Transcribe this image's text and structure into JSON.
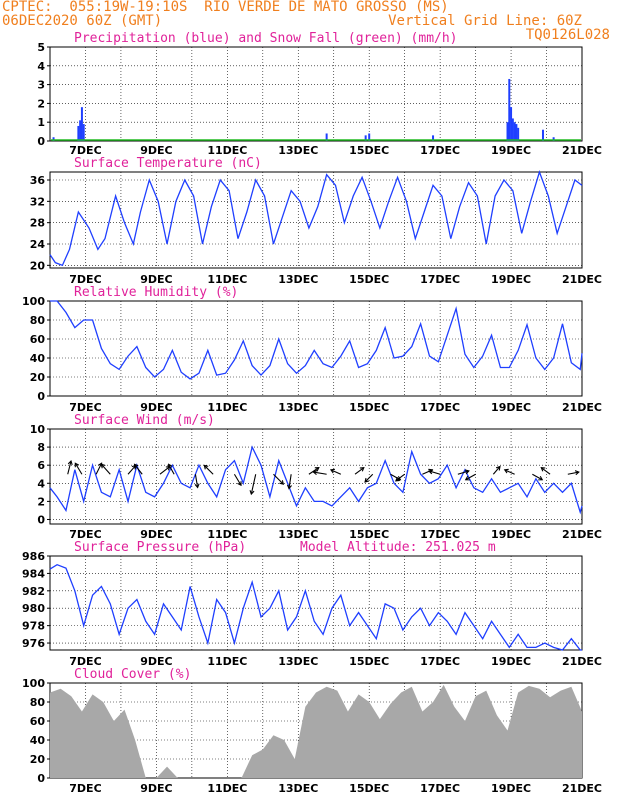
{
  "header": {
    "line1_left": "CPTEC:  055:19W-19:10S  RIO VERDE DE MATO GROSSO (MS)",
    "line2_left": "06DEC2020 60Z (GMT)",
    "line2_right": "Vertical Grid Line: 60Z",
    "line3_right": "TQ0126L028"
  },
  "colors": {
    "series": "#1f3fff",
    "snow": "#22bb22",
    "cloud": "#a8a8a8",
    "title": "#e0229a",
    "header": "#f07f1e"
  },
  "x_labels": [
    "7DEC",
    "9DEC",
    "11DEC",
    "13DEC",
    "15DEC",
    "17DEC",
    "19DEC",
    "21DEC"
  ],
  "chart_data": [
    {
      "type": "bar",
      "title": "Precipitation (blue) and Snow Fall (green) (mm/h)",
      "x_unit": "day_of_december",
      "ylim": [
        0,
        5
      ],
      "yticks": [
        0,
        1,
        2,
        3,
        4,
        5
      ],
      "series": [
        {
          "name": "Precipitation",
          "x": [
            6.1,
            6.8,
            6.85,
            6.9,
            6.95,
            13.8,
            14.9,
            15.0,
            16.8,
            18.9,
            18.95,
            19.0,
            19.05,
            19.1,
            19.15,
            19.2,
            19.9,
            20.2
          ],
          "values": [
            0.2,
            0.8,
            1.1,
            1.8,
            0.9,
            0.4,
            0.3,
            0.4,
            0.3,
            1.0,
            3.3,
            1.8,
            1.2,
            1.0,
            0.9,
            0.7,
            0.6,
            0.2
          ]
        },
        {
          "name": "Snow Fall",
          "x": [],
          "values": []
        }
      ]
    },
    {
      "type": "line",
      "title": "Surface Temperature (nC)",
      "x_unit": "day_of_december",
      "ylim": [
        19.5,
        37.5
      ],
      "yticks": [
        20,
        24,
        28,
        32,
        36
      ],
      "x": [
        6.0,
        6.15,
        6.35,
        6.55,
        6.8,
        7.1,
        7.35,
        7.55,
        7.85,
        8.1,
        8.35,
        8.55,
        8.8,
        9.05,
        9.3,
        9.55,
        9.8,
        10.05,
        10.3,
        10.55,
        10.8,
        11.05,
        11.3,
        11.55,
        11.8,
        12.05,
        12.3,
        12.55,
        12.8,
        13.05,
        13.3,
        13.55,
        13.8,
        14.05,
        14.3,
        14.55,
        14.8,
        15.05,
        15.3,
        15.55,
        15.8,
        16.05,
        16.3,
        16.55,
        16.8,
        17.05,
        17.3,
        17.55,
        17.8,
        18.05,
        18.3,
        18.55,
        18.8,
        19.05,
        19.3,
        19.55,
        19.8,
        20.05,
        20.3,
        20.55,
        20.8,
        21.0
      ],
      "values": [
        22.0,
        20.5,
        20.0,
        23.0,
        30.0,
        27.0,
        23.0,
        25.0,
        33.0,
        28.0,
        24.0,
        30.0,
        36.0,
        32.0,
        24.0,
        32.0,
        36.0,
        33.0,
        24.0,
        31.0,
        36.0,
        34.0,
        25.0,
        30.0,
        36.0,
        33.0,
        24.0,
        29.0,
        34.0,
        32.0,
        27.0,
        31.0,
        37.0,
        35.0,
        28.0,
        33.0,
        36.5,
        32.0,
        27.0,
        32.0,
        36.5,
        32.0,
        25.0,
        30.0,
        35.0,
        33.0,
        25.0,
        31.0,
        35.5,
        33.0,
        24.0,
        33.0,
        36.0,
        34.0,
        26.0,
        32.0,
        37.5,
        33.0,
        26.0,
        31.0,
        36.0,
        35.0
      ]
    },
    {
      "type": "line",
      "title": "Relative Humidity (%)",
      "x_unit": "day_of_december",
      "ylim": [
        0,
        100
      ],
      "yticks": [
        0,
        20,
        40,
        60,
        80,
        100
      ],
      "x": [
        6.0,
        6.2,
        6.45,
        6.7,
        6.95,
        7.2,
        7.45,
        7.7,
        7.95,
        8.2,
        8.45,
        8.7,
        8.95,
        9.2,
        9.45,
        9.7,
        9.95,
        10.2,
        10.45,
        10.7,
        10.95,
        11.2,
        11.45,
        11.7,
        11.95,
        12.2,
        12.45,
        12.7,
        12.95,
        13.2,
        13.45,
        13.7,
        13.95,
        14.2,
        14.45,
        14.7,
        14.95,
        15.2,
        15.45,
        15.7,
        15.95,
        16.2,
        16.45,
        16.7,
        16.95,
        17.2,
        17.45,
        17.7,
        17.95,
        18.2,
        18.45,
        18.7,
        18.95,
        19.2,
        19.45,
        19.7,
        19.95,
        20.2,
        20.45,
        20.7,
        20.95,
        21.0
      ],
      "values": [
        100,
        100,
        88,
        72,
        80,
        80,
        50,
        34,
        28,
        42,
        52,
        30,
        20,
        28,
        48,
        25,
        18,
        24,
        48,
        22,
        24,
        38,
        58,
        32,
        22,
        32,
        60,
        34,
        24,
        32,
        48,
        34,
        30,
        42,
        58,
        30,
        34,
        48,
        72,
        40,
        42,
        52,
        76,
        42,
        36,
        64,
        92,
        44,
        30,
        42,
        64,
        30,
        30,
        48,
        75,
        40,
        28,
        40,
        76,
        35,
        28,
        45
      ]
    },
    {
      "type": "line",
      "title": "Surface Wind (m/s)",
      "x_unit": "day_of_december",
      "ylim": [
        -0.5,
        10
      ],
      "yticks": [
        0,
        2,
        4,
        6,
        8,
        10
      ],
      "x": [
        6.0,
        6.2,
        6.45,
        6.7,
        6.95,
        7.2,
        7.45,
        7.7,
        7.95,
        8.2,
        8.45,
        8.7,
        8.95,
        9.2,
        9.45,
        9.7,
        9.95,
        10.2,
        10.45,
        10.7,
        10.95,
        11.2,
        11.45,
        11.7,
        11.95,
        12.2,
        12.45,
        12.7,
        12.95,
        13.2,
        13.45,
        13.7,
        13.95,
        14.2,
        14.45,
        14.7,
        14.95,
        15.2,
        15.45,
        15.7,
        15.95,
        16.2,
        16.45,
        16.7,
        16.95,
        17.2,
        17.45,
        17.7,
        17.95,
        18.2,
        18.45,
        18.7,
        18.95,
        19.2,
        19.45,
        19.7,
        19.95,
        20.2,
        20.45,
        20.7,
        20.95,
        21.0
      ],
      "values": [
        3.5,
        2.5,
        1.0,
        5.5,
        2.0,
        6.0,
        3.0,
        2.5,
        5.5,
        2.0,
        6.0,
        3.0,
        2.5,
        4.0,
        6.0,
        4.0,
        3.5,
        6.0,
        4.0,
        2.5,
        5.5,
        6.5,
        4.0,
        8.0,
        6.0,
        2.5,
        6.5,
        4.0,
        1.5,
        3.5,
        2.0,
        2.0,
        1.5,
        2.5,
        3.5,
        2.0,
        3.5,
        4.0,
        6.5,
        4.0,
        3.0,
        7.5,
        5.0,
        4.0,
        4.5,
        6.0,
        3.5,
        5.5,
        3.5,
        3.0,
        4.5,
        3.0,
        3.5,
        4.0,
        2.5,
        4.5,
        3.0,
        4.0,
        3.0,
        4.0,
        0.8,
        1.5
      ],
      "wind_vectors": [
        {
          "x": 6.5,
          "u": 0.3,
          "v": 1.2
        },
        {
          "x": 6.9,
          "u": -0.6,
          "v": 1.0
        },
        {
          "x": 7.3,
          "u": 0.5,
          "v": 1.0
        },
        {
          "x": 7.7,
          "u": -0.8,
          "v": 0.9
        },
        {
          "x": 8.2,
          "u": 0.7,
          "v": 0.8
        },
        {
          "x": 8.6,
          "u": -0.7,
          "v": 0.9
        },
        {
          "x": 9.1,
          "u": 0.9,
          "v": 0.7
        },
        {
          "x": 9.5,
          "u": -0.5,
          "v": 0.9
        },
        {
          "x": 10.1,
          "u": 0.2,
          "v": -1.2
        },
        {
          "x": 10.6,
          "u": -0.8,
          "v": 0.8
        },
        {
          "x": 11.2,
          "u": 0.6,
          "v": -1.0
        },
        {
          "x": 11.8,
          "u": -0.4,
          "v": -1.8
        },
        {
          "x": 12.3,
          "u": 0.9,
          "v": -0.9
        },
        {
          "x": 12.8,
          "u": -0.2,
          "v": -1.3
        },
        {
          "x": 13.3,
          "u": 0.9,
          "v": 0.6
        },
        {
          "x": 13.8,
          "u": -1.2,
          "v": 0.2
        },
        {
          "x": 14.2,
          "u": -0.9,
          "v": 0.4
        },
        {
          "x": 14.6,
          "u": 0.8,
          "v": 0.6
        },
        {
          "x": 15.1,
          "u": -0.7,
          "v": -0.7
        },
        {
          "x": 15.6,
          "u": 0.9,
          "v": -0.5
        },
        {
          "x": 16.0,
          "u": -0.8,
          "v": -0.6
        },
        {
          "x": 16.5,
          "u": 0.9,
          "v": 0.4
        },
        {
          "x": 17.0,
          "u": -1.0,
          "v": 0.3
        },
        {
          "x": 17.5,
          "u": 1.0,
          "v": 0.3
        },
        {
          "x": 18.0,
          "u": -0.9,
          "v": -0.5
        },
        {
          "x": 18.5,
          "u": 0.6,
          "v": 0.7
        },
        {
          "x": 19.1,
          "u": -0.9,
          "v": 0.4
        },
        {
          "x": 19.6,
          "u": 0.9,
          "v": -0.5
        },
        {
          "x": 20.1,
          "u": -0.8,
          "v": 0.6
        },
        {
          "x": 20.6,
          "u": 1.0,
          "v": 0.2
        }
      ]
    },
    {
      "type": "line",
      "title": "Surface Pressure (hPa)",
      "annotation": "Model Altitude: 251.025 m",
      "x_unit": "day_of_december",
      "ylim": [
        975.2,
        986
      ],
      "yticks": [
        976,
        978,
        980,
        982,
        984,
        986
      ],
      "x": [
        6.0,
        6.2,
        6.45,
        6.7,
        6.95,
        7.2,
        7.45,
        7.7,
        7.95,
        8.2,
        8.45,
        8.7,
        8.95,
        9.2,
        9.45,
        9.7,
        9.95,
        10.2,
        10.45,
        10.7,
        10.95,
        11.2,
        11.45,
        11.7,
        11.95,
        12.2,
        12.45,
        12.7,
        12.95,
        13.2,
        13.45,
        13.7,
        13.95,
        14.2,
        14.45,
        14.7,
        14.95,
        15.2,
        15.45,
        15.7,
        15.95,
        16.2,
        16.45,
        16.7,
        16.95,
        17.2,
        17.45,
        17.7,
        17.95,
        18.2,
        18.45,
        18.7,
        18.95,
        19.2,
        19.45,
        19.7,
        19.95,
        20.2,
        20.45,
        20.7,
        20.95,
        21.0
      ],
      "values": [
        984.5,
        985.0,
        984.6,
        982.0,
        978.0,
        981.5,
        982.5,
        980.5,
        977.0,
        980.0,
        981.0,
        978.5,
        977.0,
        980.5,
        979.0,
        977.5,
        982.5,
        979.0,
        976.0,
        981.0,
        979.5,
        976.0,
        980.0,
        983.0,
        979.0,
        980.0,
        982.0,
        977.5,
        979.0,
        982.0,
        978.5,
        977.0,
        980.0,
        981.5,
        978.0,
        979.5,
        978.0,
        976.5,
        980.5,
        980.0,
        977.5,
        979.0,
        980.0,
        978.0,
        979.5,
        978.5,
        977.0,
        979.5,
        978.0,
        976.5,
        978.5,
        977.0,
        975.5,
        977.0,
        975.5,
        975.5,
        976.0,
        975.5,
        975.2,
        976.5,
        975.2,
        975.2
      ]
    },
    {
      "type": "area",
      "title": "Cloud Cover (%)",
      "x_unit": "day_of_december",
      "ylim": [
        0,
        100
      ],
      "yticks": [
        0,
        20,
        40,
        60,
        80,
        100
      ],
      "x": [
        6.0,
        6.3,
        6.6,
        6.9,
        7.2,
        7.5,
        7.8,
        8.1,
        8.4,
        8.7,
        9.0,
        9.3,
        9.6,
        9.9,
        10.2,
        10.5,
        10.8,
        11.1,
        11.4,
        11.7,
        12.0,
        12.3,
        12.6,
        12.9,
        13.2,
        13.5,
        13.8,
        14.1,
        14.4,
        14.7,
        15.0,
        15.3,
        15.6,
        15.9,
        16.2,
        16.5,
        16.8,
        17.1,
        17.4,
        17.7,
        18.0,
        18.3,
        18.6,
        18.9,
        19.2,
        19.5,
        19.8,
        20.1,
        20.4,
        20.7,
        21.0
      ],
      "values": [
        90,
        94,
        86,
        70,
        88,
        80,
        60,
        72,
        40,
        0,
        0,
        12,
        0,
        0,
        0,
        0,
        0,
        0,
        0,
        24,
        30,
        45,
        40,
        20,
        75,
        90,
        96,
        92,
        70,
        88,
        80,
        62,
        78,
        90,
        96,
        70,
        80,
        98,
        75,
        60,
        86,
        92,
        66,
        50,
        90,
        97,
        94,
        85,
        92,
        96,
        70
      ]
    }
  ]
}
